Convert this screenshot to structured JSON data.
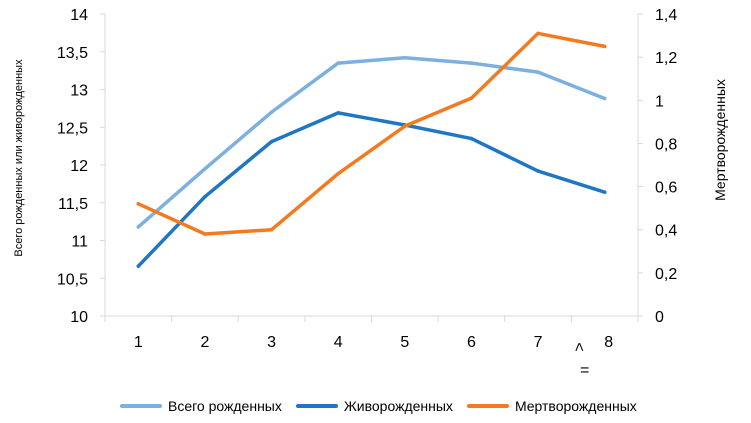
{
  "chart_data": {
    "type": "line",
    "categories": [
      "1",
      "2",
      "3",
      "4",
      "5",
      "6",
      "7",
      "> 8 ="
    ],
    "category_labels": [
      {
        "lines": [
          "1"
        ]
      },
      {
        "lines": [
          "2"
        ]
      },
      {
        "lines": [
          "3"
        ]
      },
      {
        "lines": [
          "4"
        ]
      },
      {
        "lines": [
          "5"
        ]
      },
      {
        "lines": [
          "6"
        ]
      },
      {
        "lines": [
          "7"
        ]
      },
      {
        "lines": [
          ">",
          "8",
          "="
        ]
      }
    ],
    "y_left": {
      "label": "Всего рожденных или живорожденных",
      "range": [
        10,
        14
      ],
      "ticks": [
        "10",
        "10,5",
        "11",
        "11,5",
        "12",
        "12,5",
        "13",
        "13,5",
        "14"
      ]
    },
    "y_right": {
      "label": "Мертворожденных",
      "range": [
        0,
        1.4
      ],
      "ticks": [
        "0",
        "0,2",
        "0,4",
        "0,6",
        "0,8",
        "1",
        "1,2",
        "1,4"
      ]
    },
    "grid": false,
    "legend_position": "bottom",
    "series": [
      {
        "name": "Всего рожденных",
        "axis": "left",
        "color": "#7bb0e0",
        "values": [
          11.18,
          11.95,
          12.7,
          13.35,
          13.42,
          13.35,
          13.23,
          12.88
        ]
      },
      {
        "name": "Живорожденных",
        "axis": "left",
        "color": "#1f77c4",
        "values": [
          10.66,
          11.58,
          12.31,
          12.69,
          12.53,
          12.35,
          11.92,
          11.64
        ]
      },
      {
        "name": "Мертворожденных",
        "axis": "right",
        "color": "#f47a1f",
        "values": [
          0.52,
          0.38,
          0.4,
          0.66,
          0.88,
          1.01,
          1.31,
          1.25
        ]
      }
    ]
  }
}
